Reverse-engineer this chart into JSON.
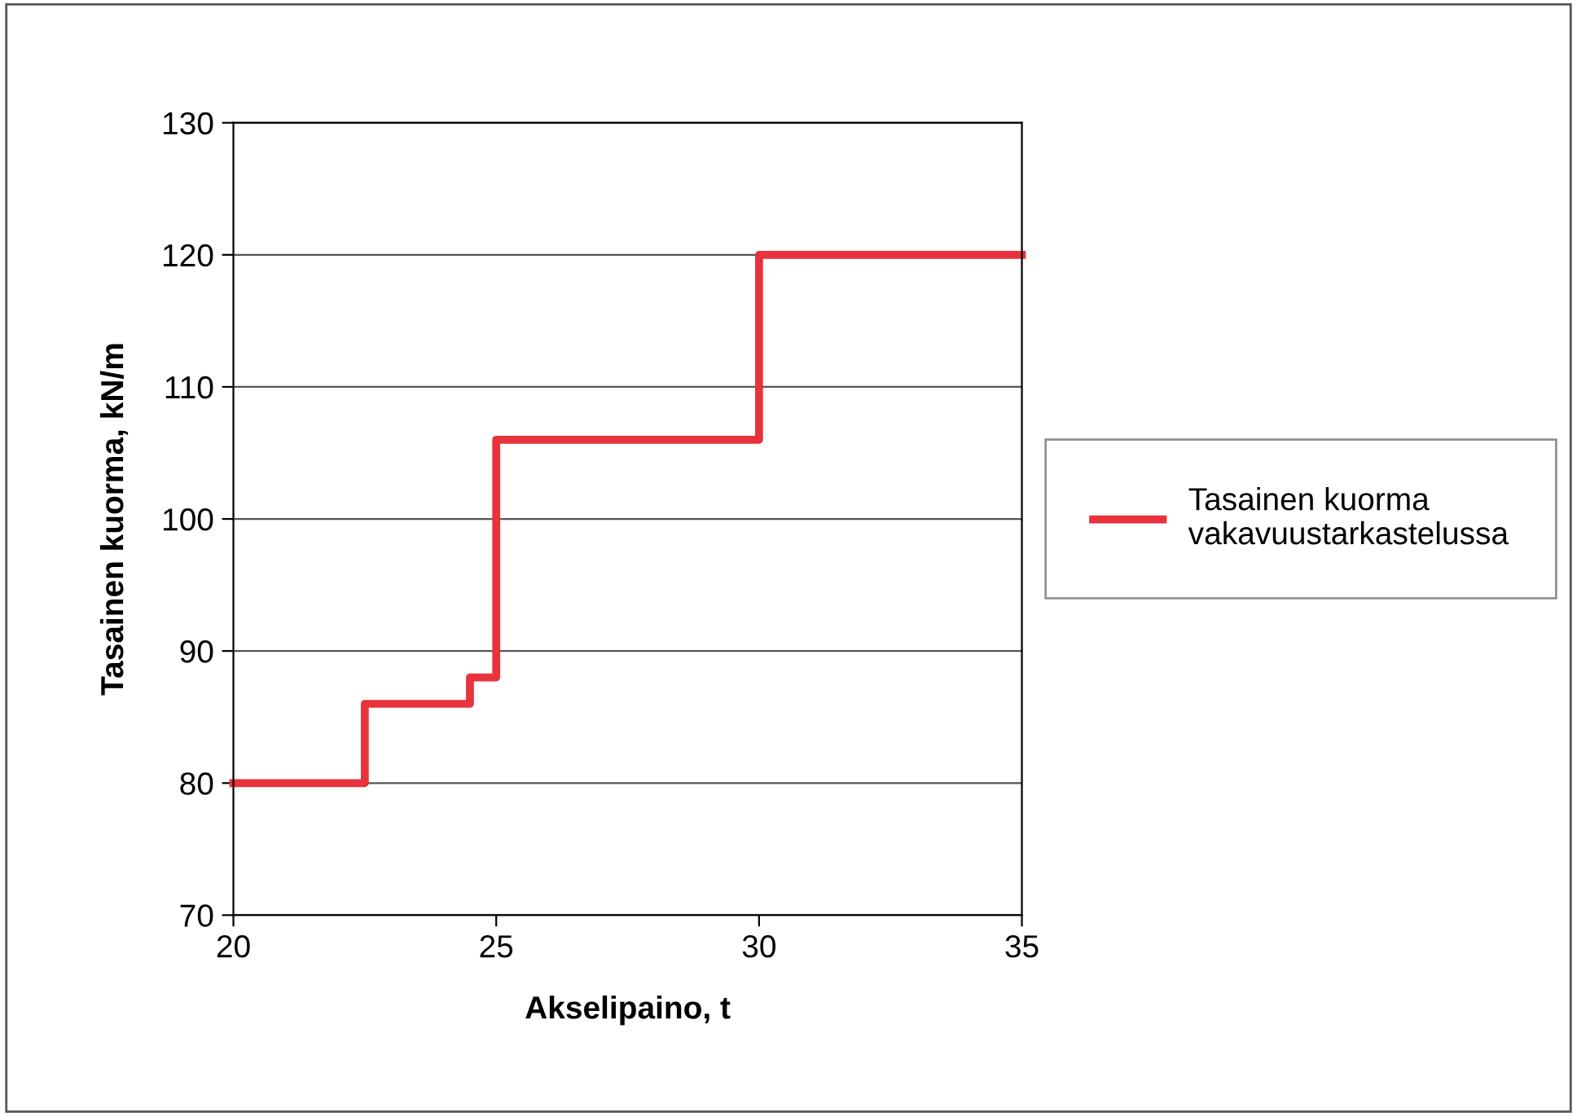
{
  "chart_data": {
    "type": "step",
    "xlabel": "Akselipaino, t",
    "ylabel": "Tasainen kuorma, kN/m",
    "x": [
      20,
      22.5,
      24.5,
      25,
      30,
      35
    ],
    "series": [
      {
        "name": "Tasainen kuorma\nvakavuustarkastelussa",
        "color": "#e8323c",
        "values": [
          80,
          86,
          88,
          106,
          120,
          120
        ]
      }
    ],
    "xlim": [
      20,
      35
    ],
    "xticks": [
      20,
      25,
      30,
      35
    ],
    "ylim": [
      70,
      130
    ],
    "yticks": [
      70,
      80,
      90,
      100,
      110,
      120,
      130
    ],
    "grid": "y",
    "legend": "right",
    "marker": "none",
    "line_style": "solid"
  }
}
